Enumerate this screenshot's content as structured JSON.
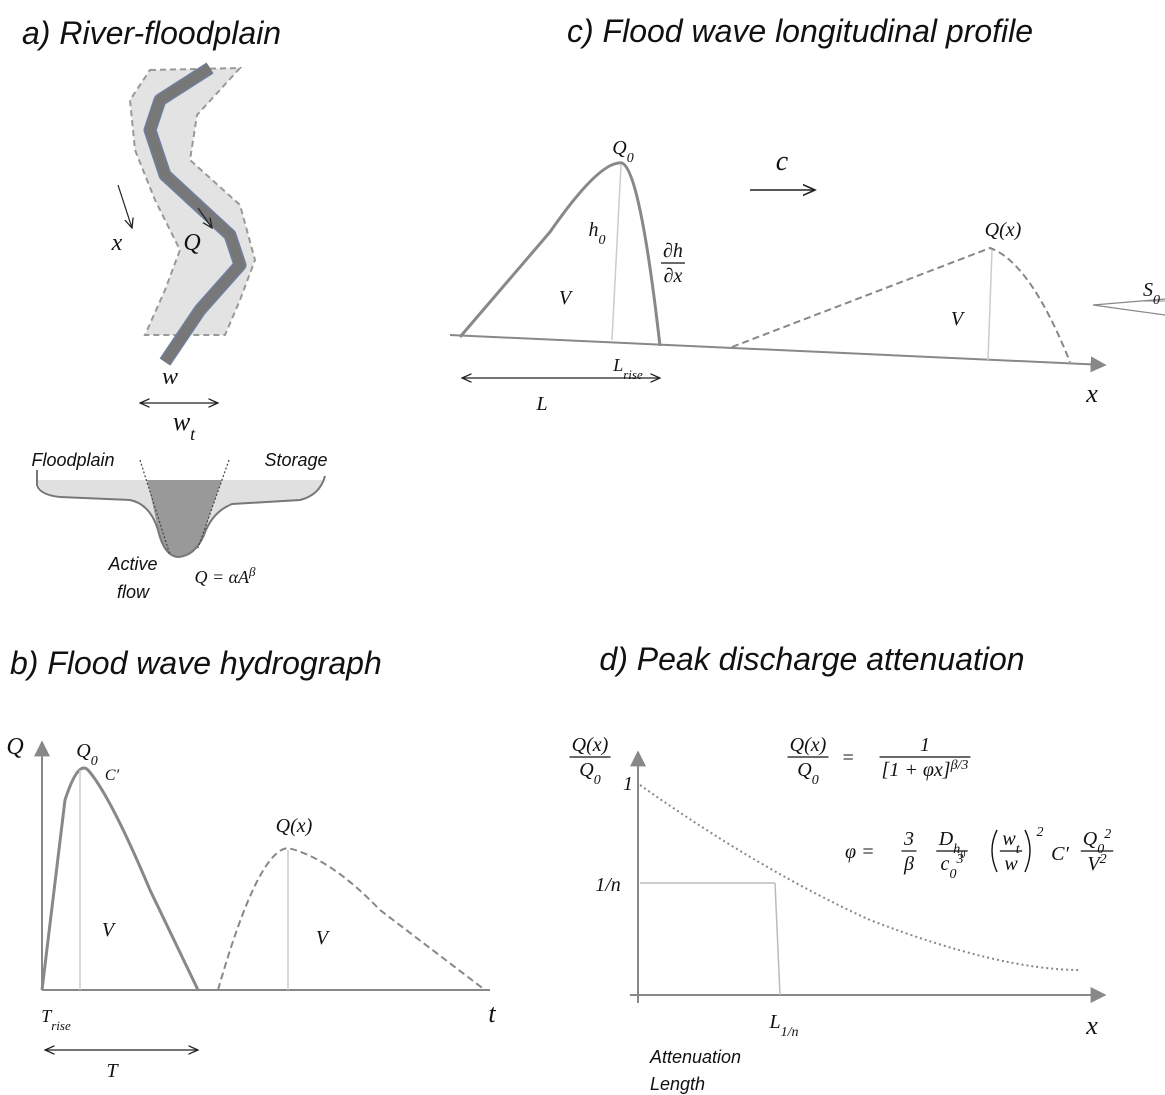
{
  "panel_a": {
    "title": "a) River-floodplain",
    "flow_direction": "x",
    "discharge": "Q",
    "channel_width": "w",
    "total_width": {
      "base": "w",
      "sub": "t"
    },
    "floodplain": "Floodplain",
    "storage": "Storage",
    "active_flow": [
      "Active",
      "flow"
    ],
    "rating_curve": {
      "base": "Q = αA",
      "sup": "β"
    }
  },
  "panel_c": {
    "title": "c) Flood wave longitudinal profile",
    "peak": {
      "base": "Q",
      "sub": "0"
    },
    "celerity": "c",
    "depth": {
      "base": "h",
      "sub": "0"
    },
    "water_slope": {
      "num": "∂h",
      "den": "∂x"
    },
    "volume_left": "V",
    "peak_downstream": "Q(x)",
    "volume_right": "V",
    "bed_slope": {
      "base": "S",
      "sub": "0"
    },
    "rise_length": {
      "base": "L",
      "sub": "rise"
    },
    "length": "L",
    "axis": "x"
  },
  "panel_b": {
    "title": "b) Flood wave hydrograph",
    "axis_q": "Q",
    "peak": {
      "base": "Q",
      "sub": "0"
    },
    "concavity": "C′",
    "volume_left": "V",
    "peak_downstream": "Q(x)",
    "volume_right": "V",
    "rise_time": {
      "base": "T",
      "sub": "rise"
    },
    "axis_t": "t",
    "duration": "T"
  },
  "panel_d": {
    "title": "d) Peak discharge attenuation",
    "axis_y": {
      "num": "Q(x)",
      "den": {
        "base": "Q",
        "sub": "0"
      }
    },
    "tick_one": "1",
    "tick_n": "1/n",
    "attenuation_eq": {
      "lhs": {
        "num": "Q(x)",
        "den": {
          "base": "Q",
          "sub": "0"
        }
      },
      "equals": "=",
      "rhs": {
        "num": "1",
        "den": {
          "base": "[1 + φx]",
          "sup": "β/3"
        }
      }
    },
    "phi_eq": {
      "lhs": "φ =",
      "f1": {
        "num": "3",
        "den": "β"
      },
      "f2": {
        "num": {
          "base": "D",
          "sub": {
            "base": "h",
            "sub": "0"
          }
        },
        "den": {
          "base": "c",
          "sub": "0",
          "sup": "3"
        }
      },
      "f3": {
        "num": {
          "base": "w",
          "sub": "t"
        },
        "den": "w"
      },
      "paren_power": "2",
      "factor": "C′",
      "f4": {
        "num": {
          "base": "Q",
          "sub": "0",
          "sup": "2"
        },
        "den": {
          "base": "V",
          "sup": "2"
        }
      }
    },
    "length_tick": {
      "base": "L",
      "sub": "1/n"
    },
    "axis_x": "x",
    "caption": [
      "Attenuation",
      "Length"
    ]
  }
}
